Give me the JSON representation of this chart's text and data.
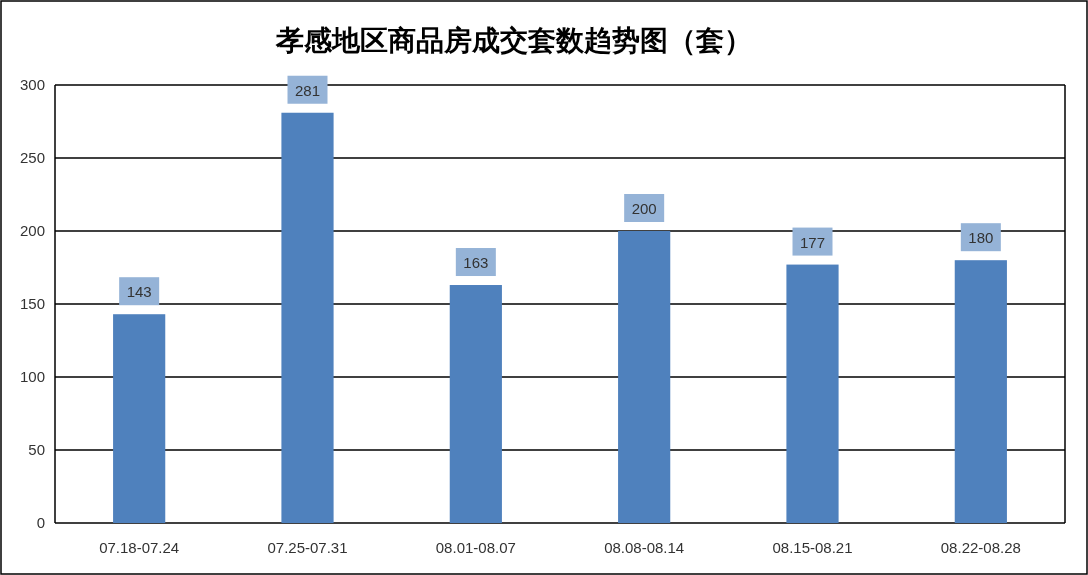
{
  "chart_data": {
    "type": "bar",
    "title": "孝感地区商品房成交套数趋势图（套）",
    "categories": [
      "07.18-07.24",
      "07.25-07.31",
      "08.01-08.07",
      "08.08-08.14",
      "08.15-08.21",
      "08.22-08.28"
    ],
    "values": [
      143,
      281,
      163,
      200,
      177,
      180
    ],
    "color": "#4f81bd",
    "ylim": [
      0,
      300
    ],
    "yticks": [
      0,
      50,
      100,
      150,
      200,
      250,
      300
    ],
    "grid": "y",
    "data_labels": true
  }
}
